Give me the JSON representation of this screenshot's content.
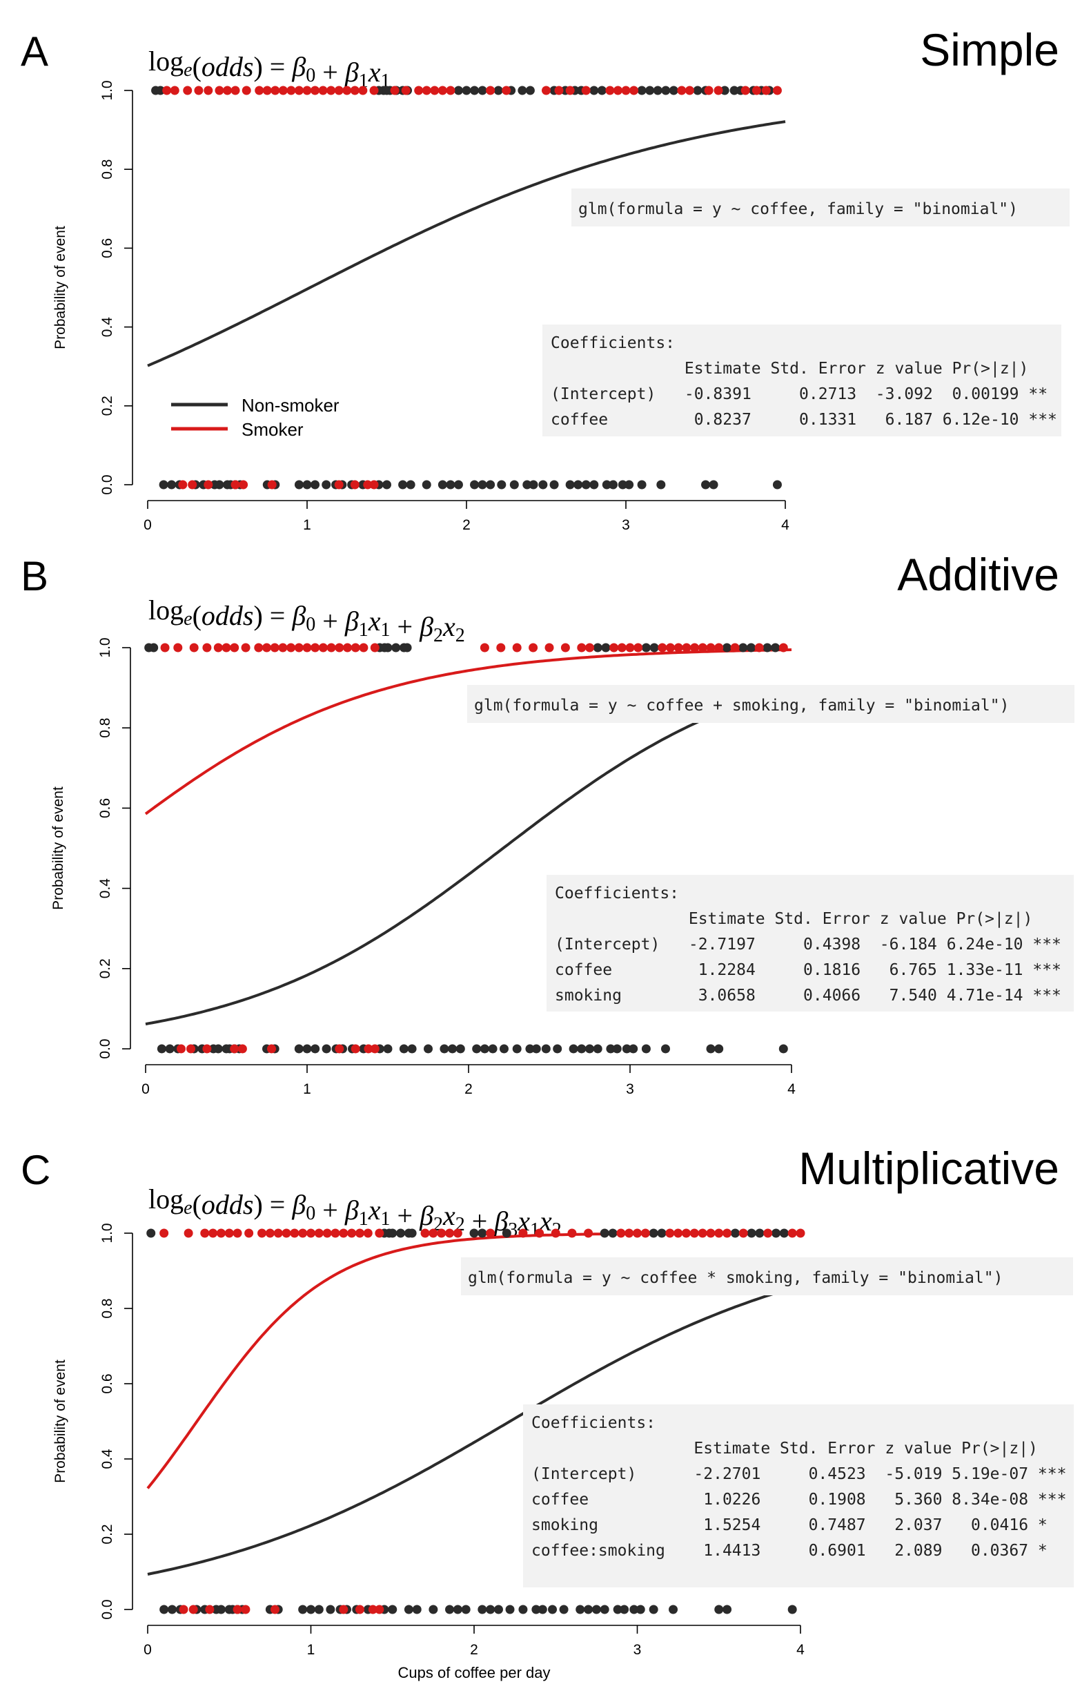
{
  "colors": {
    "non_smoker": "#2b2b2b",
    "smoker": "#d81a1a",
    "box_bg": "#f2f2f2",
    "axis": "#000000"
  },
  "legend": {
    "labels": [
      "Non-smoker",
      "Smoker"
    ],
    "placement": "left, lower-middle of panel A"
  },
  "x_axis_label": "Cups of coffee per day",
  "y_axis_label": "Probability of event",
  "chart_data": [
    {
      "type": "scatter",
      "panel_letter": "A",
      "title": "Simple",
      "equation": "log_e(odds) = β0 + β1x1",
      "xlabel": "",
      "ylabel": "Probability of event",
      "xlim": [
        0,
        4
      ],
      "ylim": [
        0,
        1
      ],
      "x_ticks": [
        "0",
        "1",
        "2",
        "3",
        "4"
      ],
      "y_ticks": [
        "0.0",
        "0.2",
        "0.4",
        "0.6",
        "0.8",
        "1.0"
      ],
      "formula_text": "glm(formula = y ~ coffee, family = \"binomial\")",
      "coefficients_text": [
        "Coefficients:",
        "              Estimate Std. Error z value Pr(>|z|)",
        "(Intercept)   -0.8391     0.2713  -3.092  0.00199 **",
        "coffee         0.8237     0.1331   6.187 6.12e-10 ***"
      ],
      "series": [
        {
          "name": "Non-smoker",
          "kind": "curve",
          "intercept": -0.8391,
          "slope": 0.8237
        }
      ],
      "points": {
        "nonsmoker_y1": [
          0.05,
          0.08,
          1.45,
          1.48,
          1.5,
          1.52,
          1.56,
          1.6,
          1.63,
          1.95,
          2.0,
          2.05,
          2.1,
          2.2,
          2.28,
          2.35,
          2.4,
          2.55,
          2.62,
          2.68,
          2.72,
          2.8,
          2.85,
          3.1,
          3.15,
          3.2,
          3.25,
          3.3,
          3.45,
          3.5,
          3.62,
          3.68,
          3.72,
          3.8,
          3.85,
          3.9
        ],
        "smoker_y1": [
          0.12,
          0.17,
          0.25,
          0.32,
          0.38,
          0.45,
          0.5,
          0.55,
          0.62,
          0.7,
          0.75,
          0.8,
          0.85,
          0.9,
          0.95,
          1.0,
          1.05,
          1.1,
          1.15,
          1.2,
          1.25,
          1.3,
          1.35,
          1.42,
          1.55,
          1.62,
          1.7,
          1.75,
          1.8,
          1.85,
          1.9,
          2.15,
          2.25,
          2.5,
          2.58,
          2.65,
          2.75,
          2.9,
          2.95,
          3.0,
          3.05,
          3.35,
          3.4,
          3.52,
          3.58,
          3.75,
          3.82,
          3.88,
          3.95
        ],
        "nonsmoker_y0": [
          0.1,
          0.15,
          0.2,
          0.3,
          0.35,
          0.42,
          0.45,
          0.5,
          0.52,
          0.55,
          0.58,
          0.75,
          0.8,
          0.95,
          1.0,
          1.05,
          1.12,
          1.18,
          1.22,
          1.28,
          1.35,
          1.45,
          1.5,
          1.6,
          1.65,
          1.75,
          1.85,
          1.9,
          1.95,
          2.05,
          2.1,
          2.15,
          2.22,
          2.3,
          2.38,
          2.42,
          2.48,
          2.55,
          2.65,
          2.7,
          2.75,
          2.8,
          2.88,
          2.92,
          2.98,
          3.02,
          3.1,
          3.22,
          3.5,
          3.55,
          3.95
        ],
        "smoker_y0": [
          0.22,
          0.28,
          0.38,
          0.55,
          0.6,
          0.78,
          1.2,
          1.3,
          1.38,
          1.42
        ]
      }
    },
    {
      "type": "scatter",
      "panel_letter": "B",
      "title": "Additive",
      "equation": "log_e(odds) = β0 + β1x1 + β2x2",
      "xlabel": "",
      "ylabel": "Probability of event",
      "xlim": [
        0,
        4
      ],
      "ylim": [
        0,
        1
      ],
      "x_ticks": [
        "0",
        "1",
        "2",
        "3",
        "4"
      ],
      "y_ticks": [
        "0.0",
        "0.2",
        "0.4",
        "0.6",
        "0.8",
        "1.0"
      ],
      "formula_text": "glm(formula = y ~ coffee + smoking, family = \"binomial\")",
      "coefficients_text": [
        "Coefficients:",
        "              Estimate Std. Error z value Pr(>|z|)",
        "(Intercept)   -2.7197     0.4398  -6.184 6.24e-10 ***",
        "coffee         1.2284     0.1816   6.765 1.33e-11 ***",
        "smoking        3.0658     0.4066   7.540 4.71e-14 ***"
      ],
      "series": [
        {
          "name": "Non-smoker",
          "kind": "curve",
          "intercept": -2.7197,
          "slope": 1.2284
        },
        {
          "name": "Smoker",
          "kind": "curve",
          "intercept": 0.3461,
          "slope": 1.2284
        }
      ],
      "points": {
        "nonsmoker_y1": [
          0.02,
          0.05,
          1.45,
          1.48,
          1.5,
          1.55,
          1.6,
          1.62,
          2.8,
          2.85,
          3.1,
          3.15,
          3.6,
          3.7,
          3.75,
          3.85,
          3.9
        ],
        "smoker_y1": [
          0.12,
          0.2,
          0.3,
          0.38,
          0.45,
          0.5,
          0.55,
          0.62,
          0.7,
          0.75,
          0.8,
          0.85,
          0.9,
          0.95,
          1.0,
          1.05,
          1.1,
          1.15,
          1.2,
          1.25,
          1.3,
          1.35,
          1.42,
          2.1,
          2.2,
          2.3,
          2.4,
          2.5,
          2.6,
          2.7,
          2.75,
          2.9,
          2.95,
          3.0,
          3.05,
          3.2,
          3.25,
          3.3,
          3.35,
          3.4,
          3.45,
          3.5,
          3.55,
          3.65,
          3.8,
          3.95
        ],
        "nonsmoker_y0": [
          0.1,
          0.15,
          0.2,
          0.3,
          0.35,
          0.42,
          0.45,
          0.5,
          0.52,
          0.55,
          0.58,
          0.75,
          0.8,
          0.95,
          1.0,
          1.05,
          1.12,
          1.18,
          1.22,
          1.28,
          1.35,
          1.45,
          1.5,
          1.6,
          1.65,
          1.75,
          1.85,
          1.9,
          1.95,
          2.05,
          2.1,
          2.15,
          2.22,
          2.3,
          2.38,
          2.42,
          2.48,
          2.55,
          2.65,
          2.7,
          2.75,
          2.8,
          2.88,
          2.92,
          2.98,
          3.02,
          3.1,
          3.22,
          3.5,
          3.55,
          3.95
        ],
        "smoker_y0": [
          0.22,
          0.28,
          0.38,
          0.55,
          0.6,
          0.78,
          1.2,
          1.3,
          1.38,
          1.42
        ]
      }
    },
    {
      "type": "scatter",
      "panel_letter": "C",
      "title": "Multiplicative",
      "equation": "log_e(odds) = β0 + β1x1 + β2x2 + β3x1x2",
      "xlabel": "Cups of coffee per day",
      "ylabel": "Probability of event",
      "xlim": [
        0,
        4
      ],
      "ylim": [
        0,
        1
      ],
      "x_ticks": [
        "0",
        "1",
        "2",
        "3",
        "4"
      ],
      "y_ticks": [
        "0.0",
        "0.2",
        "0.4",
        "0.6",
        "0.8",
        "1.0"
      ],
      "formula_text": "glm(formula = y ~ coffee * smoking, family = \"binomial\")",
      "coefficients_text": [
        "Coefficients:",
        "                 Estimate Std. Error z value Pr(>|z|)",
        "(Intercept)      -2.2701     0.4523  -5.019 5.19e-07 ***",
        "coffee            1.0226     0.1908   5.360 8.34e-08 ***",
        "smoking           1.5254     0.7487   2.037   0.0416 *",
        "coffee:smoking    1.4413     0.6901   2.089   0.0367 *"
      ],
      "series": [
        {
          "name": "Non-smoker",
          "kind": "curve",
          "intercept": -2.2701,
          "slope": 1.0226
        },
        {
          "name": "Smoker",
          "kind": "curve",
          "intercept": -0.7447,
          "slope": 2.4639
        }
      ],
      "points": {
        "nonsmoker_y1": [
          0.02,
          1.45,
          1.48,
          1.5,
          1.55,
          1.6,
          1.62,
          2.0,
          2.05,
          2.2,
          2.8,
          2.85,
          3.1,
          3.15,
          3.6,
          3.7,
          3.75,
          3.85,
          3.9
        ],
        "smoker_y1": [
          0.1,
          0.25,
          0.35,
          0.4,
          0.45,
          0.5,
          0.55,
          0.62,
          0.7,
          0.75,
          0.8,
          0.85,
          0.9,
          0.95,
          1.0,
          1.05,
          1.1,
          1.15,
          1.2,
          1.25,
          1.3,
          1.35,
          1.42,
          1.7,
          1.75,
          1.8,
          1.85,
          1.9,
          2.1,
          2.3,
          2.4,
          2.5,
          2.6,
          2.7,
          2.9,
          2.95,
          3.0,
          3.05,
          3.2,
          3.25,
          3.3,
          3.35,
          3.4,
          3.45,
          3.5,
          3.55,
          3.65,
          3.8,
          3.95,
          4.0
        ],
        "nonsmoker_y0": [
          0.1,
          0.15,
          0.2,
          0.3,
          0.35,
          0.42,
          0.45,
          0.5,
          0.52,
          0.55,
          0.58,
          0.75,
          0.8,
          0.95,
          1.0,
          1.05,
          1.12,
          1.18,
          1.22,
          1.28,
          1.35,
          1.45,
          1.5,
          1.6,
          1.65,
          1.75,
          1.85,
          1.9,
          1.95,
          2.05,
          2.1,
          2.15,
          2.22,
          2.3,
          2.38,
          2.42,
          2.48,
          2.55,
          2.65,
          2.7,
          2.75,
          2.8,
          2.88,
          2.92,
          2.98,
          3.02,
          3.1,
          3.22,
          3.5,
          3.55,
          3.95
        ],
        "smoker_y0": [
          0.22,
          0.28,
          0.38,
          0.55,
          0.6,
          0.78,
          1.2,
          1.3,
          1.38,
          1.42
        ]
      }
    }
  ]
}
